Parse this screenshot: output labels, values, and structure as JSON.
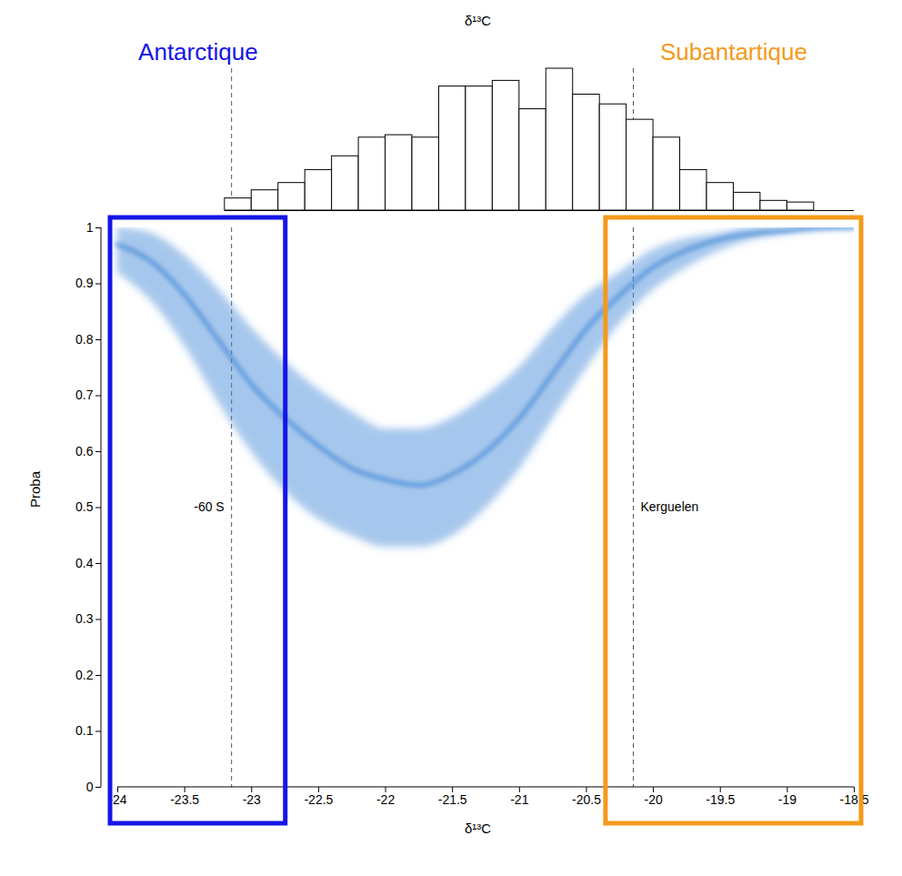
{
  "chart_data": [
    {
      "type": "histogram",
      "title": "δ¹³C",
      "bins": [
        -23.2,
        -23,
        -22.8,
        -22.6,
        -22.4,
        -22.2,
        -22,
        -21.8,
        -21.6,
        -21.4,
        -21.2,
        -21,
        -20.8,
        -20.6,
        -20.4,
        -20.2,
        -20,
        -19.8,
        -19.6,
        -19.4,
        -19.2,
        -19,
        -18.8
      ],
      "counts": [
        15,
        25,
        34,
        50,
        67,
        90,
        93,
        90,
        153,
        153,
        160,
        125,
        175,
        143,
        131,
        112,
        90,
        50,
        34,
        22,
        12,
        10
      ],
      "color": "#ffffff",
      "xlim": [
        -24,
        -18.5
      ],
      "tick_labels": false
    },
    {
      "type": "line",
      "x": [
        -24,
        -23.75,
        -23.5,
        -23.25,
        -23,
        -22.75,
        -22.5,
        -22.25,
        -22,
        -21.75,
        -21.5,
        -21.25,
        -21,
        -20.75,
        -20.5,
        -20.25,
        -20,
        -19.75,
        -19.5,
        -19.25,
        -19,
        -18.75,
        -18.5
      ],
      "values": [
        0.97,
        0.94,
        0.88,
        0.8,
        0.72,
        0.66,
        0.61,
        0.57,
        0.55,
        0.54,
        0.56,
        0.6,
        0.66,
        0.74,
        0.82,
        0.88,
        0.93,
        0.96,
        0.98,
        0.99,
        0.995,
        1,
        1
      ],
      "lower": [
        0.92,
        0.87,
        0.79,
        0.69,
        0.6,
        0.53,
        0.48,
        0.45,
        0.43,
        0.43,
        0.45,
        0.5,
        0.57,
        0.66,
        0.75,
        0.83,
        0.89,
        0.93,
        0.96,
        0.98,
        0.99,
        0.995,
        1
      ],
      "upper": [
        1,
        0.99,
        0.95,
        0.89,
        0.82,
        0.76,
        0.71,
        0.67,
        0.64,
        0.64,
        0.66,
        0.7,
        0.75,
        0.82,
        0.88,
        0.92,
        0.96,
        0.98,
        0.99,
        1,
        1,
        1,
        1
      ],
      "color": "#3d85d6",
      "xlabel": "δ¹³C",
      "ylabel": "Proba",
      "xlim": [
        -24,
        -18.5
      ],
      "xticks": [
        -24,
        -23.5,
        -23,
        -22.5,
        -22,
        -21.5,
        -21,
        -20.5,
        -20,
        -19.5,
        -19,
        -18.5
      ],
      "ylim": [
        0,
        1
      ],
      "yticks": [
        0,
        0.1,
        0.2,
        0.3,
        0.4,
        0.5,
        0.6,
        0.7,
        0.8,
        0.9,
        1
      ],
      "annotations": [
        {
          "x": -23.15,
          "label": "-60 S",
          "line_style": "dashed"
        },
        {
          "x": -20.15,
          "label": "Kerguelen",
          "line_style": "dashed"
        }
      ],
      "regions": [
        {
          "label": "Antarctique",
          "color": "#1515e6",
          "x": [
            -24,
            -22.8
          ]
        },
        {
          "label": "Subantartique",
          "color": "#f49a1b",
          "x": [
            -20.3,
            -18.5
          ]
        }
      ]
    }
  ]
}
